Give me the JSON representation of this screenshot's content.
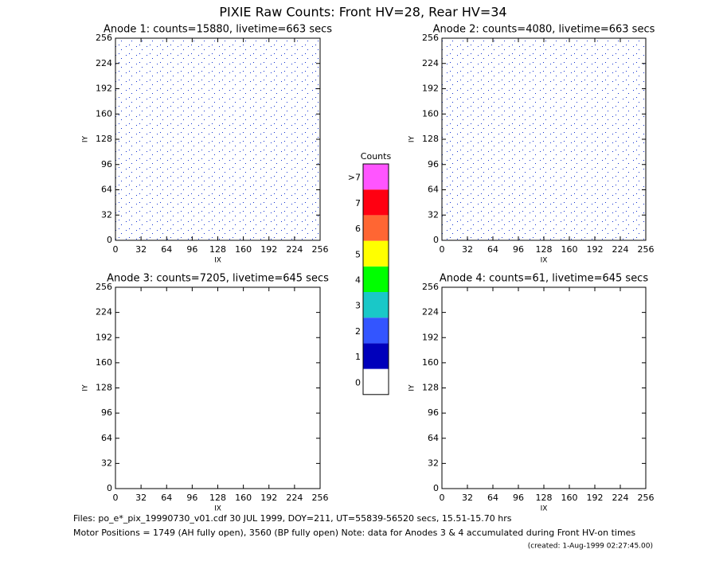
{
  "title": "PIXIE Raw Counts:  Front HV=28, Rear HV=34",
  "chart_data": [
    {
      "type": "heatmap",
      "title": "Anode 1: counts=15880, livetime=663 secs",
      "xlabel": "IX",
      "ylabel": "IY",
      "xlim": [
        0,
        256
      ],
      "ylim": [
        0,
        256
      ],
      "xticks": [
        0,
        32,
        64,
        96,
        128,
        160,
        192,
        224,
        256
      ],
      "yticks": [
        0,
        32,
        64,
        96,
        128,
        160,
        192,
        224,
        256
      ]
    },
    {
      "type": "heatmap",
      "title": "Anode 2: counts=4080, livetime=663 secs",
      "xlabel": "IX",
      "ylabel": "IY",
      "xlim": [
        0,
        256
      ],
      "ylim": [
        0,
        256
      ],
      "xticks": [
        0,
        32,
        64,
        96,
        128,
        160,
        192,
        224,
        256
      ],
      "yticks": [
        0,
        32,
        64,
        96,
        128,
        160,
        192,
        224,
        256
      ]
    },
    {
      "type": "heatmap",
      "title": "Anode 3: counts=7205, livetime=645 secs",
      "xlabel": "IX",
      "ylabel": "IY",
      "xlim": [
        0,
        256
      ],
      "ylim": [
        0,
        256
      ],
      "xticks": [
        0,
        32,
        64,
        96,
        128,
        160,
        192,
        224,
        256
      ],
      "yticks": [
        0,
        32,
        64,
        96,
        128,
        160,
        192,
        224,
        256
      ]
    },
    {
      "type": "heatmap",
      "title": "Anode 4: counts=61, livetime=645 secs",
      "xlabel": "IX",
      "ylabel": "IY",
      "xlim": [
        0,
        256
      ],
      "ylim": [
        0,
        256
      ],
      "xticks": [
        0,
        32,
        64,
        96,
        128,
        160,
        192,
        224,
        256
      ],
      "yticks": [
        0,
        32,
        64,
        96,
        128,
        160,
        192,
        224,
        256
      ]
    },
    {
      "type": "colorbar",
      "title": "Counts",
      "categories": [
        "0",
        "1",
        "2",
        "3",
        "4",
        "5",
        "6",
        "7",
        ">7"
      ],
      "colors": [
        "#ffffff",
        "#0000bb",
        "#3355ff",
        "#19c8c8",
        "#00ff00",
        "#ffff00",
        "#ff6633",
        "#ff0011",
        "#ff55ff"
      ]
    }
  ],
  "footer": [
    "Files: po_e*_pix_19990730_v01.cdf    30 JUL 1999, DOY=211, UT=55839-56520 secs, 15.51-15.70 hrs",
    "Motor Positions = 1749 (AH fully open), 3560 (BP fully open)    Note: data for Anodes 3 & 4 accumulated during Front HV-on times",
    "(created:  1-Aug-1999 02:27:45.00)"
  ]
}
